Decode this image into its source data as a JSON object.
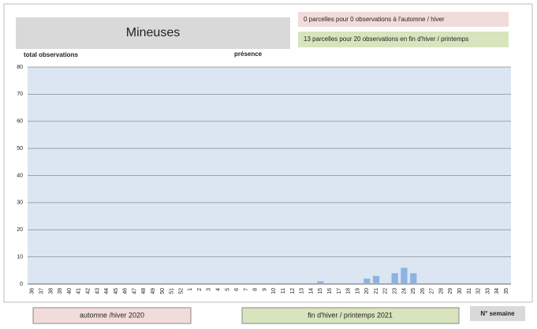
{
  "chart_data": {
    "type": "bar",
    "title": "Mineuses",
    "notes": [
      "0 parcelles pour 0 observations à l'automne / hiver",
      "13 parcelles pour 20 observations en fin d'hiver / printemps"
    ],
    "y_label": "total observations",
    "x_label": "N° semaine",
    "period_labels": [
      "automne /hiver 2020",
      "fin d'hiver / printemps 2021"
    ],
    "categories": [
      "36",
      "37",
      "38",
      "39",
      "40",
      "41",
      "42",
      "43",
      "44",
      "45",
      "46",
      "47",
      "48",
      "49",
      "50",
      "51",
      "52",
      "1",
      "2",
      "3",
      "4",
      "5",
      "6",
      "7",
      "8",
      "9",
      "10",
      "11",
      "12",
      "13",
      "14",
      "15",
      "16",
      "17",
      "18",
      "19",
      "20",
      "21",
      "22",
      "23",
      "24",
      "25",
      "26",
      "27",
      "28",
      "29",
      "30",
      "31",
      "32",
      "33",
      "34",
      "35"
    ],
    "series": [
      {
        "name": "présence",
        "color": "#8db3e2",
        "values": [
          0,
          0,
          0,
          0,
          0,
          0,
          0,
          0,
          0,
          0,
          0,
          0,
          0,
          0,
          0,
          0,
          0,
          0,
          0,
          0,
          0,
          0,
          0,
          0,
          0,
          0,
          0,
          0,
          0,
          0,
          0,
          1,
          0,
          0,
          0,
          0,
          2,
          3,
          0,
          4,
          6,
          4,
          0,
          0,
          0,
          0,
          0,
          0,
          0,
          0,
          0,
          0
        ]
      }
    ],
    "ylim": [
      0,
      80
    ],
    "yticks": [
      0,
      10,
      20,
      30,
      40,
      50,
      60,
      70,
      80
    ],
    "grid": true
  }
}
